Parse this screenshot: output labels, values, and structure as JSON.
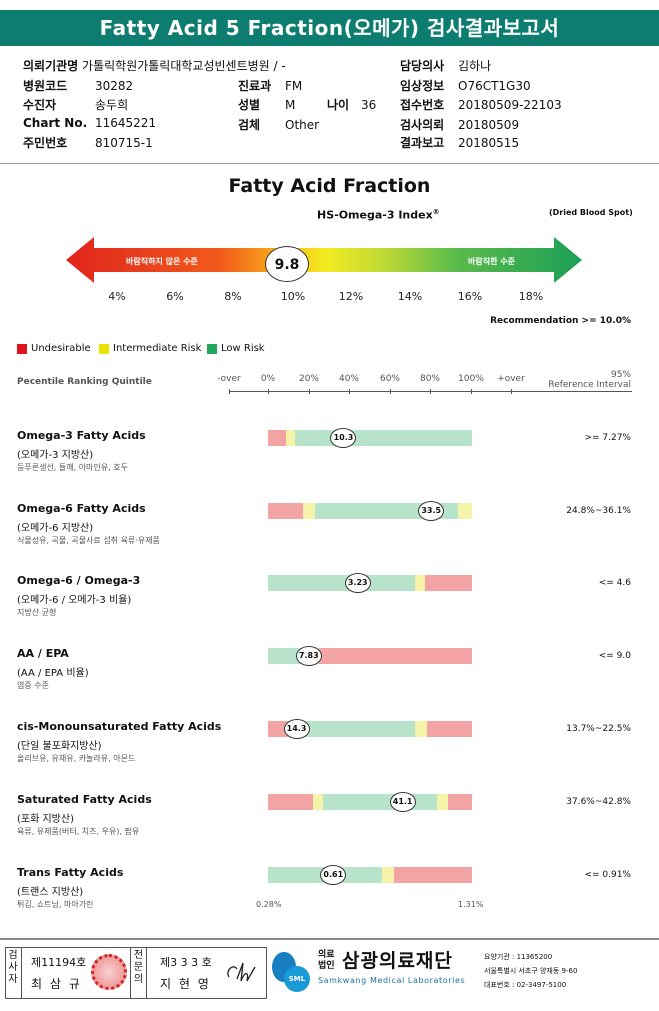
{
  "header": {
    "title": "Fatty Acid 5 Fraction(오메가) 검사결과보고서"
  },
  "info": {
    "inst_k": "의뢰기관명",
    "inst_v": "가톨릭학원가톨릭대학교성빈센트병원 / -",
    "hosp_k": "병원코드",
    "hosp_v": "30282",
    "dept_k": "진료과",
    "dept_v": "FM",
    "patient_k": "수진자",
    "patient_v": "송두희",
    "sex_k": "성별",
    "sex_v": "M",
    "age_k": "나이",
    "age_v": "36",
    "chart_k": "Chart No.",
    "chart_v": "11645221",
    "spec_k": "검체",
    "spec_v": "Other",
    "id_k": "주민번호",
    "id_v": "810715-1",
    "doc_k": "담당의사",
    "doc_v": "김하나",
    "clin_k": "임상정보",
    "clin_v": "O76CT1G30",
    "rcv_k": "접수번호",
    "rcv_v": "20180509-22103",
    "req_k": "검사의뢰",
    "req_v": "20180509",
    "rpt_k": "결과보고",
    "rpt_v": "20180515"
  },
  "fraction": {
    "title": "Fatty Acid Fraction",
    "index_label": "HS-Omega-3 Index",
    "index_reg": "®",
    "specimen_note": "(Dried Blood Spot)",
    "left_label": "바람직하지 않은 수준",
    "right_label": "바람직한 수준",
    "value": "9.8",
    "ticks": [
      "4%",
      "6%",
      "8%",
      "10%",
      "12%",
      "14%",
      "16%",
      "18%"
    ],
    "recommendation": "Recommendation  >= 10.0%"
  },
  "legend": {
    "undesirable": "Undesirable",
    "intermediate": "Intermediate Risk",
    "low": "Low Risk",
    "colors": {
      "red": "#e0141c",
      "yellow": "#e8e40a",
      "green": "#22a85a"
    }
  },
  "scale": {
    "title": "Pecentile Ranking Quintile",
    "labels": [
      "-over",
      "0%",
      "20%",
      "40%",
      "60%",
      "80%",
      "100%",
      "+over"
    ],
    "ref_title_1": "95%",
    "ref_title_2": "Reference Interval"
  },
  "rows": [
    {
      "title": "Omega-3 Fatty Acids",
      "sub": "(오메가-3 지방산)",
      "desc": "등푸른생선, 들깨, 아마인유, 호두",
      "ref": ">= 7.27%",
      "value": "10.3",
      "value_pct": 37,
      "segments": [
        [
          "red",
          0,
          9
        ],
        [
          "yel",
          9,
          13
        ],
        [
          "grn",
          13,
          100
        ]
      ]
    },
    {
      "title": "Omega-6 Fatty Acids",
      "sub": "(오메가-6 지방산)",
      "desc": "식물성유, 곡물, 곡물사료 섭취 육류·유제품",
      "ref": "24.8%~36.1%",
      "value": "33.5",
      "value_pct": 80,
      "segments": [
        [
          "red",
          0,
          17
        ],
        [
          "yel",
          17,
          23
        ],
        [
          "grn",
          23,
          93
        ],
        [
          "yel",
          93,
          100
        ]
      ]
    },
    {
      "title": "Omega-6 / Omega-3",
      "sub": "(오메가-6 / 오메가-3 비율)",
      "desc": "지방산 균형",
      "ref": "<= 4.6",
      "value": "3.23",
      "value_pct": 44,
      "segments": [
        [
          "grn",
          0,
          72
        ],
        [
          "yel",
          72,
          77
        ],
        [
          "red",
          77,
          100
        ]
      ]
    },
    {
      "title": "AA / EPA",
      "sub": "(AA / EPA 비율)",
      "desc": "염증 수준",
      "ref": "<= 9.0",
      "value": "7.83",
      "value_pct": 20,
      "segments": [
        [
          "grn",
          0,
          20
        ],
        [
          "yel",
          20,
          25
        ],
        [
          "red",
          25,
          100
        ]
      ]
    },
    {
      "title": "cis-Monounsaturated Fatty Acids",
      "sub": "(단일 불포화지방산)",
      "desc": "올리브유, 유채유, 카놀라유, 아몬드",
      "ref": "13.7%~22.5%",
      "value": "14.3",
      "value_pct": 14,
      "segments": [
        [
          "red",
          0,
          10
        ],
        [
          "yel",
          10,
          14
        ],
        [
          "grn",
          14,
          72
        ],
        [
          "yel",
          72,
          78
        ],
        [
          "red",
          78,
          100
        ]
      ]
    },
    {
      "title": "Saturated Fatty Acids",
      "sub": "(포화 지방산)",
      "desc": "육류, 유제품(버터, 치즈, 우유), 팜유",
      "ref": "37.6%~42.8%",
      "value": "41.1",
      "value_pct": 66,
      "segments": [
        [
          "red",
          0,
          22
        ],
        [
          "yel",
          22,
          27
        ],
        [
          "grn",
          27,
          83
        ],
        [
          "yel",
          83,
          88
        ],
        [
          "red",
          88,
          100
        ]
      ]
    },
    {
      "title": "Trans Fatty Acids",
      "sub": "(트랜스 지방산)",
      "desc": "튀김, 쇼트닝, 마아가린",
      "ref": "<= 0.91%",
      "value": "0.61",
      "value_pct": 32,
      "segments": [
        [
          "grn",
          0,
          56
        ],
        [
          "yel",
          56,
          62
        ],
        [
          "red",
          62,
          100
        ]
      ],
      "min": "0.28%",
      "max": "1.31%"
    }
  ],
  "footer": {
    "cell1": "검\n사\n자",
    "num1": "제11194호",
    "name1": "최 삼 규",
    "cell2": "전\n문\n의",
    "num2": "제3 3 3 호",
    "name2": "지 현 영",
    "sml": "SML",
    "corp": "의료\n법인",
    "company": "삼광의료재단",
    "company_en": "Samkwang Medical Laboratories",
    "code": "요양기관 : 11365200",
    "address": "서울특별시 서초구 양재동 9-60",
    "phone": "대표번호 : 02-3497-5100"
  }
}
